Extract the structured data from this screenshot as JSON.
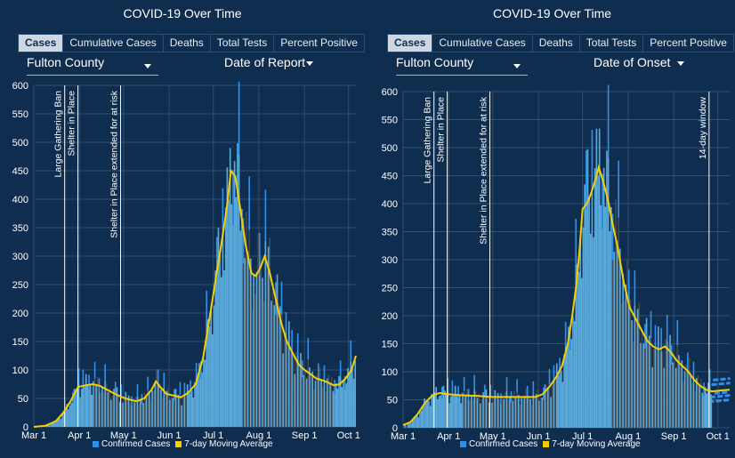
{
  "colors": {
    "background": "#0f2d4f",
    "bar": "#5aa9db",
    "bar_spike": "#2f8fe8",
    "bar_dark": "#45494f",
    "avg": "#f5d000",
    "grid": "#31506f"
  },
  "left": {
    "title": "COVID-19 Over Time",
    "tabs": [
      "Cases",
      "Cumulative Cases",
      "Deaths",
      "Total Tests",
      "Percent Positive"
    ],
    "active_tab": "Cases",
    "county": "Fulton County",
    "date_mode": "Date of Report",
    "legend": {
      "bars": "Confirmed Cases",
      "line": "7-day Moving Average"
    }
  },
  "right": {
    "title": "COVID-19 Over Time",
    "tabs": [
      "Cases",
      "Cumulative Cases",
      "Deaths",
      "Total Tests",
      "Percent Positive"
    ],
    "active_tab": "Cases",
    "county": "Fulton County",
    "date_mode": "Date of Onset",
    "legend": {
      "bars": "Confirmed Cases",
      "line": "7-day Moving Average"
    }
  },
  "chart_data": [
    {
      "type": "bar",
      "title": "",
      "ylim": [
        0,
        600
      ],
      "yticks": [
        0,
        50,
        100,
        150,
        200,
        250,
        300,
        350,
        400,
        450,
        500,
        550,
        600
      ],
      "xticks": [
        {
          "label": "Mar 1",
          "day": 0
        },
        {
          "label": "Apr 1",
          "day": 31
        },
        {
          "label": "May 1",
          "day": 61
        },
        {
          "label": "Jun 1",
          "day": 92
        },
        {
          "label": "Jul 1",
          "day": 122
        },
        {
          "label": "Aug 1",
          "day": 153
        },
        {
          "label": "Sep 1",
          "day": 184
        },
        {
          "label": "Oct 1",
          "day": 214
        }
      ],
      "x_end_day": 219,
      "annotations": [
        {
          "label": "Large Gathering Ban",
          "day": 21
        },
        {
          "label": "Shelter in Place",
          "day": 30
        },
        {
          "label": "Shelter in Place extended for at risk",
          "day": 59
        }
      ],
      "avg_keypoints": [
        [
          0,
          0
        ],
        [
          8,
          2
        ],
        [
          15,
          10
        ],
        [
          20,
          25
        ],
        [
          25,
          45
        ],
        [
          30,
          70
        ],
        [
          35,
          73
        ],
        [
          40,
          75
        ],
        [
          45,
          72
        ],
        [
          50,
          65
        ],
        [
          55,
          58
        ],
        [
          60,
          52
        ],
        [
          65,
          48
        ],
        [
          70,
          45
        ],
        [
          75,
          50
        ],
        [
          80,
          65
        ],
        [
          83,
          80
        ],
        [
          86,
          70
        ],
        [
          90,
          58
        ],
        [
          95,
          55
        ],
        [
          100,
          52
        ],
        [
          105,
          60
        ],
        [
          110,
          75
        ],
        [
          115,
          120
        ],
        [
          120,
          200
        ],
        [
          124,
          265
        ],
        [
          128,
          330
        ],
        [
          131,
          380
        ],
        [
          134,
          450
        ],
        [
          137,
          440
        ],
        [
          140,
          390
        ],
        [
          144,
          320
        ],
        [
          148,
          270
        ],
        [
          151,
          265
        ],
        [
          154,
          280
        ],
        [
          157,
          300
        ],
        [
          160,
          275
        ],
        [
          164,
          230
        ],
        [
          168,
          185
        ],
        [
          172,
          150
        ],
        [
          176,
          130
        ],
        [
          180,
          110
        ],
        [
          184,
          100
        ],
        [
          188,
          93
        ],
        [
          192,
          85
        ],
        [
          196,
          82
        ],
        [
          200,
          78
        ],
        [
          204,
          73
        ],
        [
          208,
          75
        ],
        [
          212,
          85
        ],
        [
          216,
          100
        ],
        [
          219,
          125
        ]
      ],
      "series": [
        {
          "name": "Confirmed Cases"
        },
        {
          "name": "7-day Moving Average"
        }
      ]
    },
    {
      "type": "bar",
      "title": "",
      "ylim": [
        0,
        600
      ],
      "yticks": [
        0,
        50,
        100,
        150,
        200,
        250,
        300,
        350,
        400,
        450,
        500,
        550,
        600
      ],
      "xticks": [
        {
          "label": "Mar 1",
          "day": 0
        },
        {
          "label": "Apr 1",
          "day": 31
        },
        {
          "label": "May 1",
          "day": 61
        },
        {
          "label": "Jun 1",
          "day": 92
        },
        {
          "label": "Jul 1",
          "day": 122
        },
        {
          "label": "Aug 1",
          "day": 153
        },
        {
          "label": "Sep 1",
          "day": 184
        },
        {
          "label": "Oct 1",
          "day": 214
        }
      ],
      "x_end_day": 222,
      "annotations": [
        {
          "label": "Large Gathering Ban",
          "day": 21
        },
        {
          "label": "Shelter in Place",
          "day": 30
        },
        {
          "label": "Shelter in Place extended for at risk",
          "day": 59
        },
        {
          "label": "14-day window",
          "day": 208
        }
      ],
      "avg_keypoints": [
        [
          0,
          5
        ],
        [
          5,
          10
        ],
        [
          10,
          25
        ],
        [
          15,
          45
        ],
        [
          20,
          58
        ],
        [
          25,
          62
        ],
        [
          30,
          60
        ],
        [
          40,
          58
        ],
        [
          50,
          57
        ],
        [
          60,
          55
        ],
        [
          70,
          55
        ],
        [
          80,
          55
        ],
        [
          90,
          55
        ],
        [
          95,
          60
        ],
        [
          100,
          75
        ],
        [
          104,
          90
        ],
        [
          108,
          110
        ],
        [
          112,
          150
        ],
        [
          115,
          200
        ],
        [
          118,
          260
        ],
        [
          120,
          320
        ],
        [
          122,
          390
        ],
        [
          125,
          400
        ],
        [
          128,
          420
        ],
        [
          131,
          445
        ],
        [
          133,
          465
        ],
        [
          136,
          440
        ],
        [
          139,
          410
        ],
        [
          142,
          370
        ],
        [
          146,
          320
        ],
        [
          150,
          260
        ],
        [
          154,
          215
        ],
        [
          158,
          195
        ],
        [
          162,
          175
        ],
        [
          166,
          155
        ],
        [
          170,
          145
        ],
        [
          174,
          140
        ],
        [
          178,
          145
        ],
        [
          182,
          135
        ],
        [
          186,
          120
        ],
        [
          190,
          110
        ],
        [
          194,
          100
        ],
        [
          198,
          85
        ],
        [
          202,
          75
        ],
        [
          206,
          68
        ],
        [
          210,
          65
        ],
        [
          214,
          66
        ],
        [
          218,
          67
        ],
        [
          222,
          68
        ]
      ],
      "series": [
        {
          "name": "Confirmed Cases"
        },
        {
          "name": "7-day Moving Average"
        }
      ]
    }
  ]
}
